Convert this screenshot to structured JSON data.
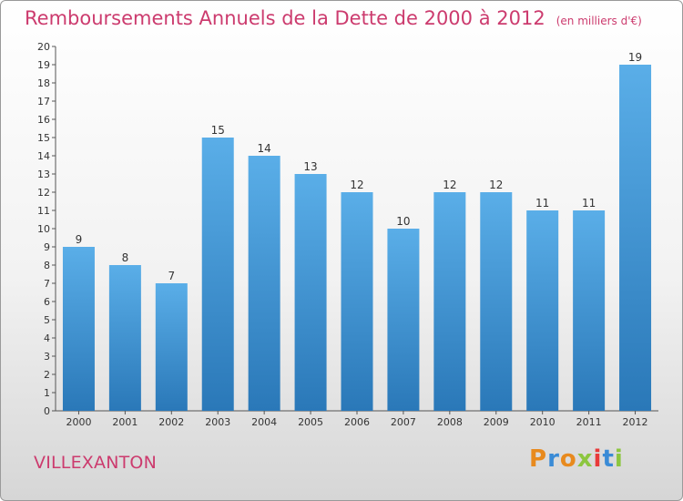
{
  "header": {
    "title": "Remboursements Annuels de la Dette de 2000 à 2012",
    "unit": "(en milliers d'€)"
  },
  "footer": {
    "commune": "VILLEXANTON",
    "logo": "Proxiti"
  },
  "colors": {
    "title": "#cc3b6e",
    "bar_top": "#5aaee8",
    "bar_bottom": "#2a78b8",
    "logo_letters": [
      "#e88a1e",
      "#3a8bd6",
      "#e88a1e",
      "#8cc63f",
      "#e83a3a",
      "#3a8bd6",
      "#8cc63f"
    ]
  },
  "chart_data": {
    "type": "bar",
    "title": "Remboursements Annuels de la Dette de 2000 à 2012",
    "ylabel": "en milliers d'€",
    "xlabel": "",
    "categories": [
      "2000",
      "2001",
      "2002",
      "2003",
      "2004",
      "2005",
      "2006",
      "2007",
      "2008",
      "2009",
      "2010",
      "2011",
      "2012"
    ],
    "values": [
      9,
      8,
      7,
      15,
      14,
      13,
      12,
      10,
      12,
      12,
      11,
      11,
      19
    ],
    "ylim": [
      0,
      20
    ],
    "yticks": [
      "0",
      "1",
      "2",
      "3",
      "4",
      "5",
      "6",
      "7",
      "8",
      "9",
      "10",
      "11",
      "12",
      "13",
      "14",
      "15",
      "16",
      "17",
      "18",
      "19",
      "20"
    ],
    "grid": false
  }
}
